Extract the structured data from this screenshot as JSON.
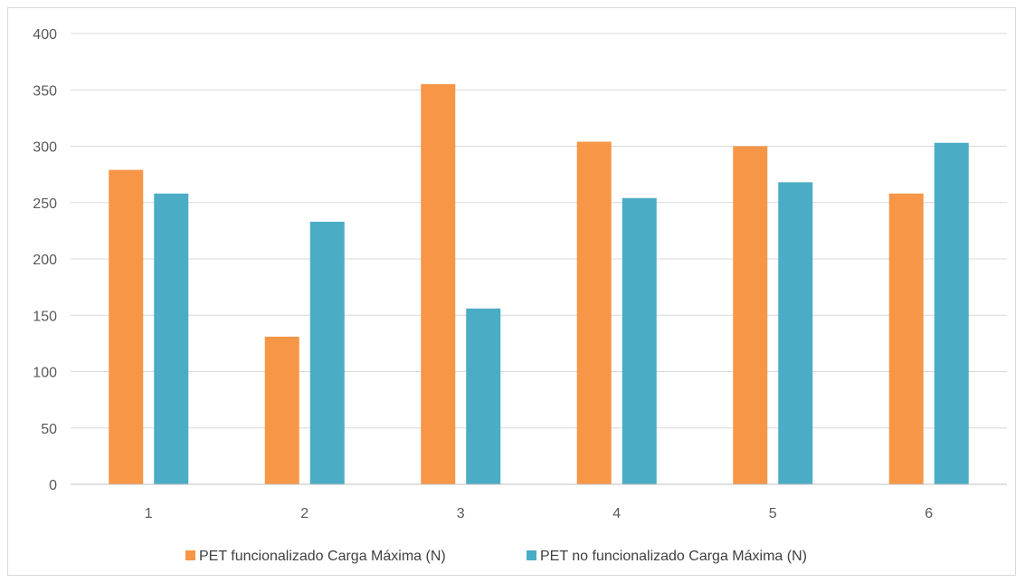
{
  "chart_data": {
    "type": "bar",
    "title": "",
    "xlabel": "",
    "ylabel": "",
    "categories": [
      "1",
      "2",
      "3",
      "4",
      "5",
      "6"
    ],
    "ylim": [
      0,
      400
    ],
    "yticks": [
      "0",
      "50",
      "100",
      "150",
      "200",
      "250",
      "300",
      "350",
      "400"
    ],
    "grid": true,
    "legend_position": "bottom",
    "series": [
      {
        "name": "PET funcionalizado Carga Máxima (N)",
        "color": "#F79646",
        "values": [
          279,
          131,
          355,
          304,
          300,
          258
        ]
      },
      {
        "name": "PET no funcionalizado Carga Máxima (N)",
        "color": "#4BACC6",
        "values": [
          258,
          233,
          156,
          254,
          268,
          303
        ]
      }
    ]
  }
}
